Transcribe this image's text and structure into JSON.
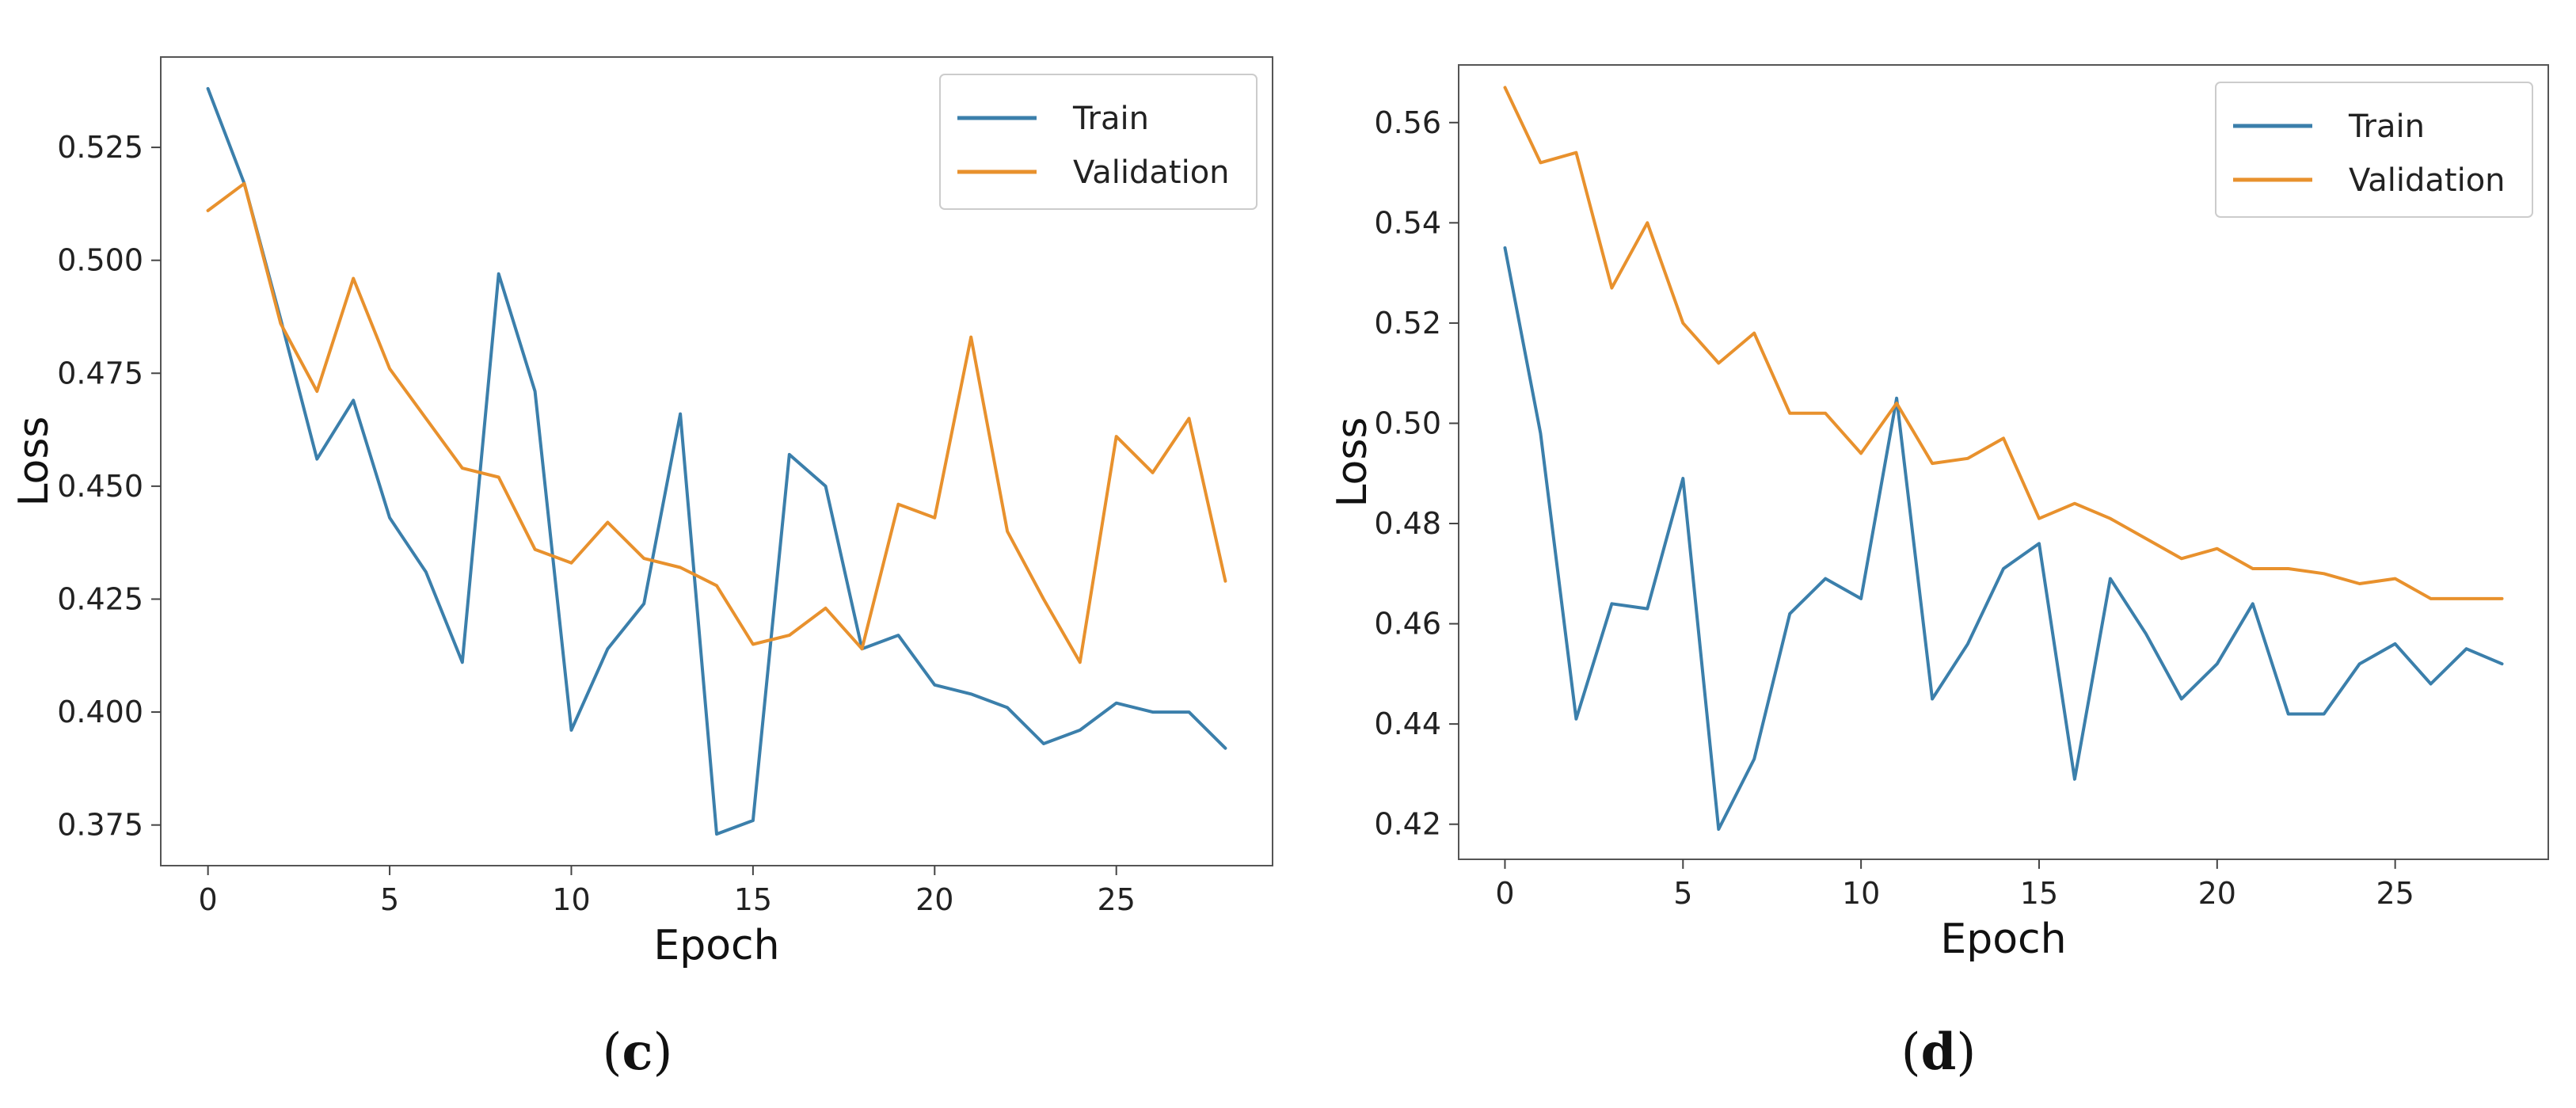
{
  "chart_data": [
    {
      "type": "line",
      "caption_letter": "c",
      "xlabel": "Epoch",
      "ylabel": "Loss",
      "xlim": [
        -1.3,
        29.3
      ],
      "ylim": [
        0.366,
        0.545
      ],
      "xticks": [
        0,
        5,
        10,
        15,
        20,
        25
      ],
      "xtick_labels": [
        "0",
        "5",
        "10",
        "15",
        "20",
        "25"
      ],
      "yticks": [
        0.375,
        0.4,
        0.425,
        0.45,
        0.475,
        0.5,
        0.525
      ],
      "ytick_labels": [
        "0.375",
        "0.400",
        "0.425",
        "0.450",
        "0.475",
        "0.500",
        "0.525"
      ],
      "legend_position": "top-right",
      "grid": false,
      "x": [
        0,
        1,
        2,
        3,
        4,
        5,
        6,
        7,
        8,
        9,
        10,
        11,
        12,
        13,
        14,
        15,
        16,
        17,
        18,
        19,
        20,
        21,
        22,
        23,
        24,
        25,
        26,
        27,
        28
      ],
      "series": [
        {
          "name": "Train",
          "color": "#3b7fab",
          "values": [
            0.538,
            0.517,
            0.487,
            0.456,
            0.469,
            0.443,
            0.431,
            0.411,
            0.497,
            0.471,
            0.396,
            0.414,
            0.424,
            0.466,
            0.373,
            0.376,
            0.457,
            0.45,
            0.414,
            0.417,
            0.406,
            0.404,
            0.401,
            0.393,
            0.396,
            0.402,
            0.4,
            0.4,
            0.392
          ]
        },
        {
          "name": "Validation",
          "color": "#e8912d",
          "values": [
            0.511,
            0.517,
            0.486,
            0.471,
            0.496,
            0.476,
            0.465,
            0.454,
            0.452,
            0.436,
            0.433,
            0.442,
            0.434,
            0.432,
            0.428,
            0.415,
            0.417,
            0.423,
            0.414,
            0.446,
            0.443,
            0.483,
            0.44,
            0.425,
            0.411,
            0.461,
            0.453,
            0.465,
            0.429
          ]
        }
      ]
    },
    {
      "type": "line",
      "caption_letter": "d",
      "xlabel": "Epoch",
      "ylabel": "Loss",
      "xlim": [
        -1.3,
        29.3
      ],
      "ylim": [
        0.413,
        0.5715
      ],
      "xticks": [
        0,
        5,
        10,
        15,
        20,
        25
      ],
      "xtick_labels": [
        "0",
        "5",
        "10",
        "15",
        "20",
        "25"
      ],
      "yticks": [
        0.42,
        0.44,
        0.46,
        0.48,
        0.5,
        0.52,
        0.54,
        0.56
      ],
      "ytick_labels": [
        "0.42",
        "0.44",
        "0.46",
        "0.48",
        "0.50",
        "0.52",
        "0.54",
        "0.56"
      ],
      "legend_position": "top-right",
      "grid": false,
      "x": [
        0,
        1,
        2,
        3,
        4,
        5,
        6,
        7,
        8,
        9,
        10,
        11,
        12,
        13,
        14,
        15,
        16,
        17,
        18,
        19,
        20,
        21,
        22,
        23,
        24,
        25,
        26,
        27,
        28
      ],
      "series": [
        {
          "name": "Train",
          "color": "#3b7fab",
          "values": [
            0.535,
            0.498,
            0.441,
            0.464,
            0.463,
            0.489,
            0.419,
            0.433,
            0.462,
            0.469,
            0.465,
            0.505,
            0.445,
            0.456,
            0.471,
            0.476,
            0.429,
            0.469,
            0.458,
            0.445,
            0.452,
            0.464,
            0.442,
            0.442,
            0.452,
            0.456,
            0.448,
            0.455,
            0.452
          ]
        },
        {
          "name": "Validation",
          "color": "#e8912d",
          "values": [
            0.567,
            0.552,
            0.554,
            0.527,
            0.54,
            0.52,
            0.512,
            0.518,
            0.502,
            0.502,
            0.494,
            0.504,
            0.492,
            0.493,
            0.497,
            0.481,
            0.484,
            0.481,
            0.477,
            0.473,
            0.475,
            0.471,
            0.471,
            0.47,
            0.468,
            0.469,
            0.465,
            0.465,
            0.465
          ]
        }
      ]
    }
  ]
}
